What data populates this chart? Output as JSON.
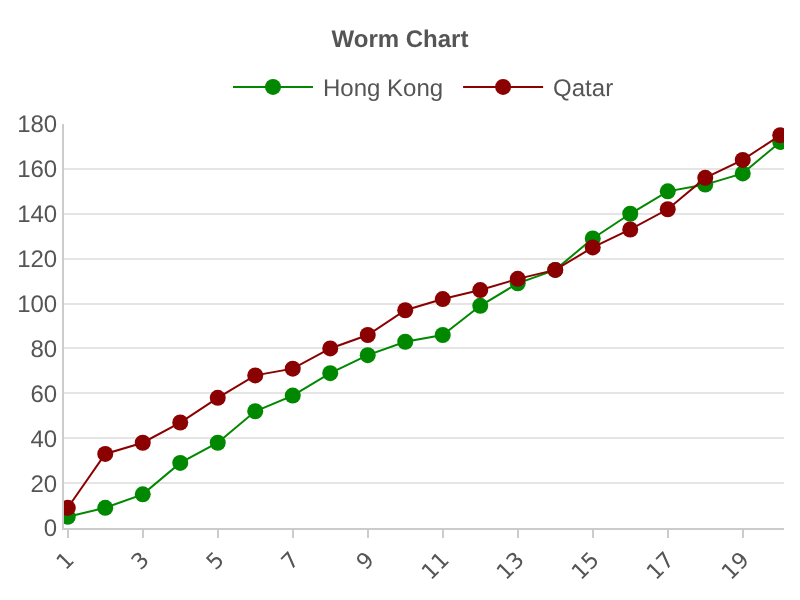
{
  "chart_data": {
    "type": "line",
    "title": "Worm Chart",
    "x": [
      1,
      2,
      3,
      4,
      5,
      6,
      7,
      8,
      9,
      10,
      11,
      12,
      13,
      14,
      15,
      16,
      17,
      18,
      19,
      20
    ],
    "series": [
      {
        "name": "Hong Kong",
        "color": "#008800",
        "values": [
          5,
          9,
          15,
          29,
          38,
          52,
          59,
          69,
          77,
          83,
          86,
          99,
          109,
          115,
          129,
          140,
          150,
          153,
          158,
          172
        ]
      },
      {
        "name": "Qatar",
        "color": "#8b0000",
        "values": [
          9,
          33,
          38,
          47,
          58,
          68,
          71,
          80,
          86,
          97,
          102,
          106,
          111,
          115,
          125,
          133,
          142,
          156,
          164,
          175
        ]
      }
    ],
    "xlim": [
      0.9,
      20.1
    ],
    "xticks": [
      1,
      3,
      5,
      7,
      9,
      11,
      13,
      15,
      17,
      19
    ],
    "ylim": [
      0,
      180
    ],
    "yticks": [
      0,
      20,
      40,
      60,
      80,
      100,
      120,
      140,
      160,
      180
    ],
    "grid": "y",
    "legend": "top",
    "marker": "circle",
    "line_style": "solid"
  }
}
